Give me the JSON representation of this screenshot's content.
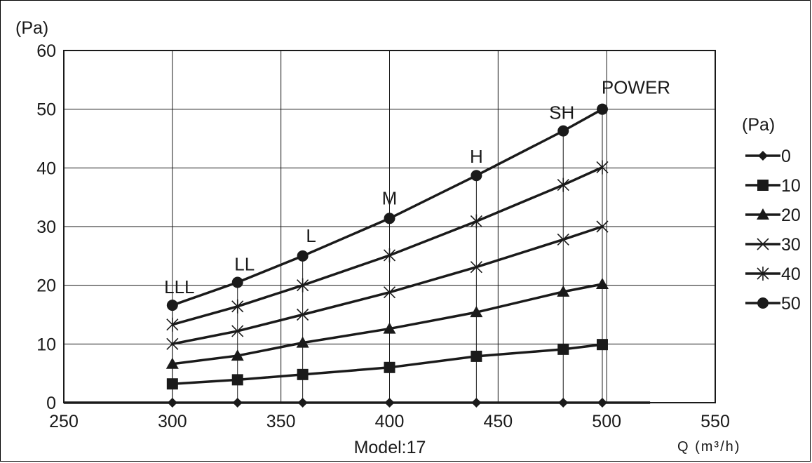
{
  "chart_data": {
    "type": "line",
    "y_unit": "(Pa)",
    "xlabel": "Q (m³/h)",
    "model": "Model:17",
    "xlim": [
      250,
      550
    ],
    "ylim": [
      0,
      60
    ],
    "x_ticks": [
      250,
      300,
      350,
      400,
      450,
      500,
      550
    ],
    "y_ticks": [
      0,
      10,
      20,
      30,
      40,
      50,
      60
    ],
    "grid": true,
    "legend_title": "(Pa)",
    "legend_position": "right",
    "x": [
      300,
      330,
      360,
      400,
      440,
      480,
      498
    ],
    "point_labels": [
      "LLL",
      "LL",
      "L",
      "M",
      "H",
      "SH",
      "POWER"
    ],
    "series": [
      {
        "name": "0",
        "marker": "diamond",
        "values": [
          0,
          0,
          0,
          0,
          0,
          0,
          0
        ]
      },
      {
        "name": "10",
        "marker": "square",
        "values": [
          3.2,
          3.9,
          4.8,
          6.0,
          7.9,
          9.1,
          9.9
        ]
      },
      {
        "name": "20",
        "marker": "triangle",
        "values": [
          6.6,
          8.0,
          10.2,
          12.6,
          15.4,
          18.9,
          20.2
        ]
      },
      {
        "name": "30",
        "marker": "x",
        "values": [
          10.0,
          12.2,
          15.0,
          18.8,
          23.1,
          27.8,
          30.0
        ]
      },
      {
        "name": "40",
        "marker": "star",
        "values": [
          13.3,
          16.4,
          20.0,
          25.1,
          30.9,
          37.1,
          40.1
        ]
      },
      {
        "name": "50",
        "marker": "circle",
        "values": [
          16.6,
          20.5,
          25.0,
          31.4,
          38.7,
          46.3,
          50.0
        ]
      }
    ]
  }
}
